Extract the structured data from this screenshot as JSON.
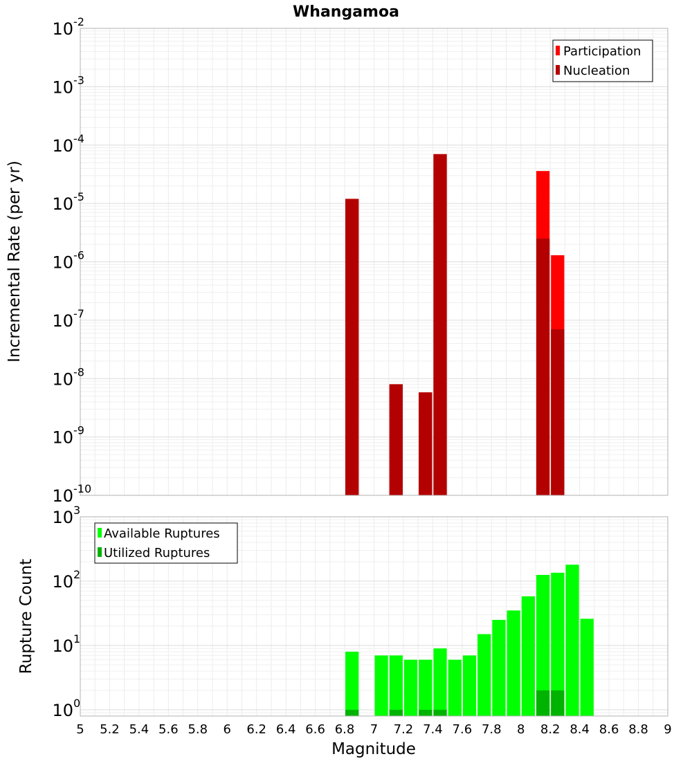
{
  "title": "Whangamoa",
  "xlabel": "Magnitude",
  "x_ticks": [
    "5",
    "5.2",
    "5.4",
    "5.6",
    "5.8",
    "6",
    "6.2",
    "6.4",
    "6.6",
    "6.8",
    "7",
    "7.2",
    "7.4",
    "7.6",
    "7.8",
    "8",
    "8.2",
    "8.4",
    "8.6",
    "8.8",
    "9"
  ],
  "chart_data": [
    {
      "type": "bar",
      "scale": "log",
      "ylabel": "Incremental Rate (per yr)",
      "xlim": [
        5,
        9
      ],
      "ylim": [
        1e-10,
        0.01
      ],
      "y_tick_exponents": [
        "-10",
        "-9",
        "-8",
        "-7",
        "-6",
        "-5",
        "-4",
        "-3",
        "-2"
      ],
      "grid": true,
      "legend_position": "top-right",
      "series": [
        {
          "name": "Participation",
          "color": "#ff0000",
          "points": [
            {
              "x": 6.85,
              "y": 1.2e-05
            },
            {
              "x": 7.15,
              "y": 8e-09
            },
            {
              "x": 7.35,
              "y": 5.8e-09
            },
            {
              "x": 7.45,
              "y": 7e-05
            },
            {
              "x": 8.15,
              "y": 3.6e-05
            },
            {
              "x": 8.25,
              "y": 1.3e-06
            }
          ]
        },
        {
          "name": "Nucleation",
          "color": "#b30000",
          "points": [
            {
              "x": 6.85,
              "y": 1.2e-05
            },
            {
              "x": 7.15,
              "y": 8e-09
            },
            {
              "x": 7.35,
              "y": 5.8e-09
            },
            {
              "x": 7.45,
              "y": 7e-05
            },
            {
              "x": 8.15,
              "y": 2.5e-06
            },
            {
              "x": 8.25,
              "y": 7e-08
            }
          ]
        }
      ]
    },
    {
      "type": "bar",
      "scale": "log",
      "ylabel": "Rupture Count",
      "xlim": [
        5,
        9
      ],
      "ylim": [
        0.8,
        1000
      ],
      "y_tick_exponents": [
        "0",
        "1",
        "2",
        "3"
      ],
      "grid": true,
      "legend_position": "top-left",
      "series": [
        {
          "name": "Available Ruptures",
          "color": "#00ff00",
          "points": [
            {
              "x": 6.85,
              "y": 8
            },
            {
              "x": 7.05,
              "y": 7
            },
            {
              "x": 7.15,
              "y": 7
            },
            {
              "x": 7.25,
              "y": 6
            },
            {
              "x": 7.35,
              "y": 6
            },
            {
              "x": 7.45,
              "y": 9
            },
            {
              "x": 7.55,
              "y": 6
            },
            {
              "x": 7.65,
              "y": 7
            },
            {
              "x": 7.75,
              "y": 15
            },
            {
              "x": 7.85,
              "y": 25
            },
            {
              "x": 7.95,
              "y": 35
            },
            {
              "x": 8.05,
              "y": 58
            },
            {
              "x": 8.15,
              "y": 125
            },
            {
              "x": 8.25,
              "y": 135
            },
            {
              "x": 8.35,
              "y": 180
            },
            {
              "x": 8.45,
              "y": 26
            }
          ]
        },
        {
          "name": "Utilized Ruptures",
          "color": "#00b300",
          "points": [
            {
              "x": 6.85,
              "y": 1
            },
            {
              "x": 7.15,
              "y": 1
            },
            {
              "x": 7.35,
              "y": 1
            },
            {
              "x": 7.45,
              "y": 1
            },
            {
              "x": 8.15,
              "y": 2
            },
            {
              "x": 8.25,
              "y": 2
            }
          ]
        }
      ]
    }
  ]
}
